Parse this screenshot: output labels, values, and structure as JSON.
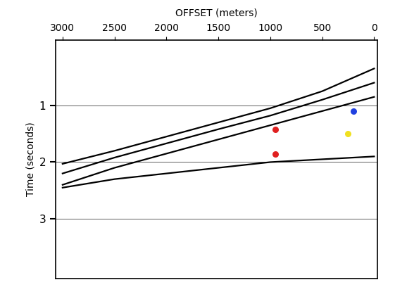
{
  "chart_data": {
    "type": "line",
    "xlabel": "OFFSET (meters)",
    "ylabel": "Time (seconds)",
    "xlim": [
      3070,
      -30
    ],
    "xticks": [
      3000,
      2500,
      2000,
      1500,
      1000,
      500,
      0
    ],
    "ylim": [
      4.05,
      -0.15
    ],
    "yticks": [
      1,
      2,
      3
    ],
    "grid": true,
    "series": [
      {
        "color": "#000000",
        "line_style": "solid",
        "x": [
          0,
          500,
          1000,
          1500,
          2000,
          2500,
          3000
        ],
        "values": [
          0.35,
          0.75,
          1.05,
          1.3,
          1.55,
          1.8,
          2.03
        ]
      },
      {
        "color": "#000000",
        "line_style": "solid",
        "x": [
          0,
          500,
          1000,
          1500,
          2000,
          2500,
          3000
        ],
        "values": [
          0.6,
          0.9,
          1.18,
          1.42,
          1.67,
          1.92,
          2.2
        ]
      },
      {
        "color": "#000000",
        "line_style": "solid",
        "x": [
          0,
          500,
          1000,
          1500,
          2000,
          2500,
          3000
        ],
        "values": [
          0.85,
          1.1,
          1.35,
          1.6,
          1.85,
          2.1,
          2.4
        ]
      },
      {
        "color": "#000000",
        "line_style": "solid",
        "x": [
          0,
          500,
          1000,
          1500,
          2000,
          2500,
          3000
        ],
        "values": [
          1.9,
          1.95,
          2.0,
          2.1,
          2.2,
          2.3,
          2.45
        ]
      },
      {
        "type": "scatter",
        "marker": "o",
        "color": "#e02020",
        "x": [
          950,
          950
        ],
        "values": [
          1.42,
          1.86
        ]
      },
      {
        "type": "scatter",
        "marker": "o",
        "color": "#2040e0",
        "x": [
          200
        ],
        "values": [
          1.1
        ]
      },
      {
        "type": "scatter",
        "marker": "o",
        "color": "#f0e020",
        "x": [
          250
        ],
        "values": [
          1.5
        ]
      }
    ]
  }
}
